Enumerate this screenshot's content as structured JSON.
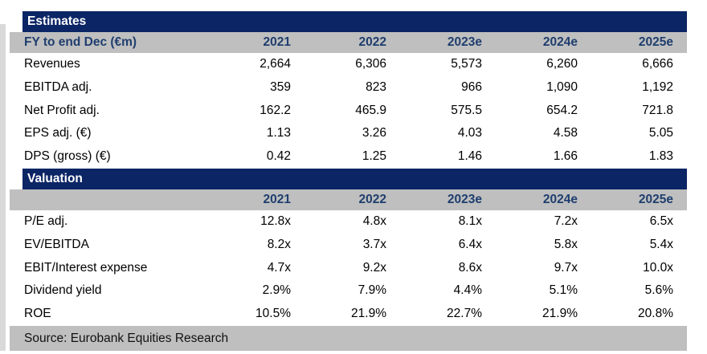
{
  "colors": {
    "band_navy": "#0b2565",
    "band_gray": "#bfbfbf",
    "year_text_navy": "#1f3e6e",
    "data_text": "#000000",
    "header_text": "#ffffff"
  },
  "table": {
    "sections": [
      {
        "title": "Estimates",
        "header_row": {
          "label": "FY to end Dec (€m)",
          "years": [
            "2021",
            "2022",
            "2023e",
            "2024e",
            "2025e"
          ]
        },
        "rows": [
          {
            "label": "Revenues",
            "values": [
              "2,664",
              "6,306",
              "5,573",
              "6,260",
              "6,666"
            ]
          },
          {
            "label": "EBITDA adj.",
            "values": [
              "359",
              "823",
              "966",
              "1,090",
              "1,192"
            ]
          },
          {
            "label": "Net Profit adj.",
            "values": [
              "162.2",
              "465.9",
              "575.5",
              "654.2",
              "721.8"
            ]
          },
          {
            "label": "EPS adj. (€)",
            "values": [
              "1.13",
              "3.26",
              "4.03",
              "4.58",
              "5.05"
            ]
          },
          {
            "label": "DPS (gross) (€)",
            "values": [
              "0.42",
              "1.25",
              "1.46",
              "1.66",
              "1.83"
            ]
          }
        ]
      },
      {
        "title": "Valuation",
        "header_row": {
          "label": "",
          "years": [
            "2021",
            "2022",
            "2023e",
            "2024e",
            "2025e"
          ]
        },
        "rows": [
          {
            "label": "P/E adj.",
            "values": [
              "12.8x",
              "4.8x",
              "8.1x",
              "7.2x",
              "6.5x"
            ]
          },
          {
            "label": "EV/EBITDA",
            "values": [
              "8.2x",
              "3.7x",
              "6.4x",
              "5.8x",
              "5.4x"
            ]
          },
          {
            "label": "EBIT/Interest expense",
            "values": [
              "4.7x",
              "9.2x",
              "8.6x",
              "9.7x",
              "10.0x"
            ]
          },
          {
            "label": "Dividend yield",
            "values": [
              "2.9%",
              "7.9%",
              "4.4%",
              "5.1%",
              "5.6%"
            ]
          },
          {
            "label": "ROE",
            "values": [
              "10.5%",
              "21.9%",
              "22.7%",
              "21.9%",
              "20.8%"
            ]
          }
        ]
      }
    ],
    "footer": "Source: Eurobank Equities Research"
  }
}
